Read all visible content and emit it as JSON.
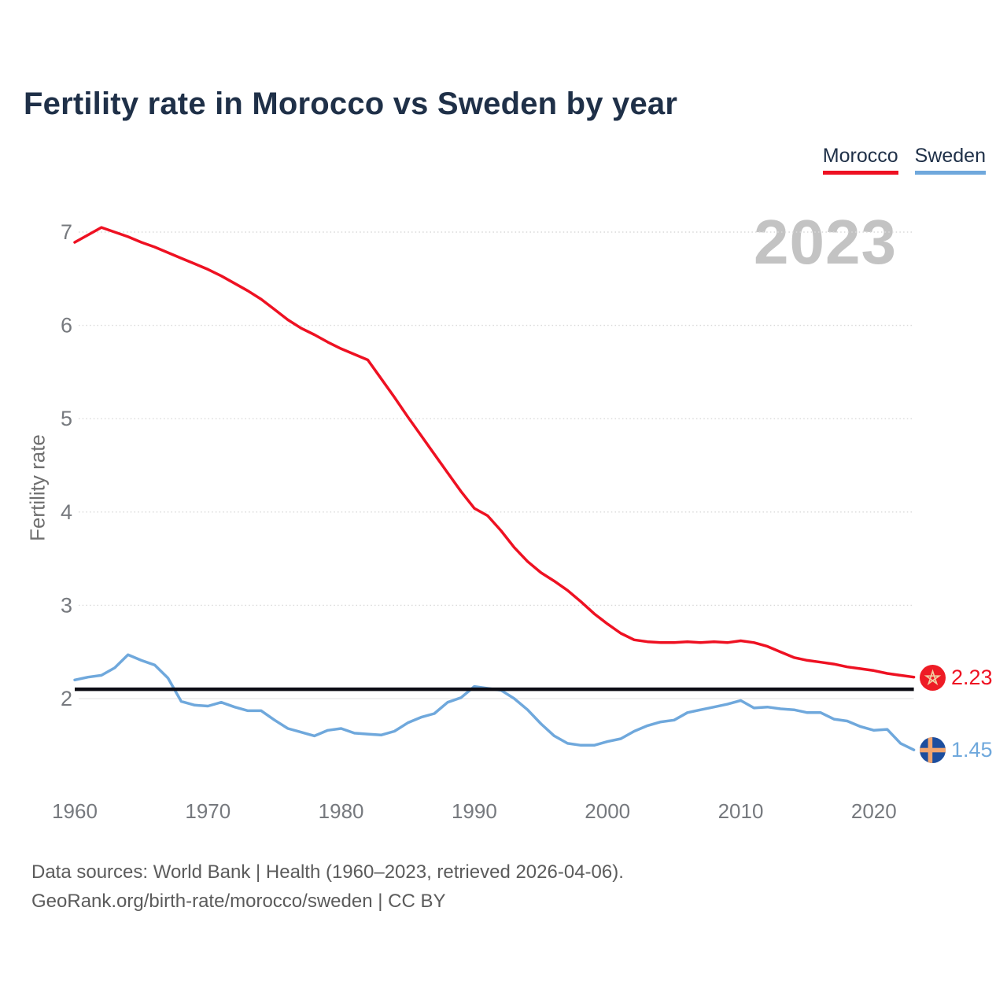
{
  "title": "Fertility rate in Morocco vs Sweden by year",
  "legend": {
    "items": [
      {
        "label": "Morocco",
        "color": "#ee1122"
      },
      {
        "label": "Sweden",
        "color": "#6fa8dc"
      }
    ]
  },
  "watermark": "2023",
  "y_axis": {
    "label": "Fertility rate"
  },
  "end_labels": {
    "morocco": {
      "value": "2.23",
      "flag": "morocco-flag",
      "color": "#ee1122"
    },
    "sweden": {
      "value": "1.45",
      "flag": "sweden-flag",
      "color": "#6fa8dc"
    }
  },
  "footer": {
    "line1": "Data sources: World Bank | Health (1960–2023, retrieved 2026-04-06).",
    "line2": "GeoRank.org/birth-rate/morocco/sweden | CC BY"
  },
  "chart_data": {
    "type": "line",
    "title": "Fertility rate in Morocco vs Sweden by year",
    "xlabel": "",
    "ylabel": "Fertility rate",
    "x_range": [
      1960,
      2023
    ],
    "ylim": [
      1.2,
      7.3
    ],
    "y_ticks": [
      2,
      3,
      4,
      5,
      6,
      7
    ],
    "x_ticks": [
      1960,
      1970,
      1980,
      1990,
      2000,
      2010,
      2020
    ],
    "grid": "horizontal-dotted",
    "legend_position": "top-right",
    "reference_line": 2.1,
    "x": [
      1960,
      1961,
      1962,
      1963,
      1964,
      1965,
      1966,
      1967,
      1968,
      1969,
      1970,
      1971,
      1972,
      1973,
      1974,
      1975,
      1976,
      1977,
      1978,
      1979,
      1980,
      1981,
      1982,
      1983,
      1984,
      1985,
      1986,
      1987,
      1988,
      1989,
      1990,
      1991,
      1992,
      1993,
      1994,
      1995,
      1996,
      1997,
      1998,
      1999,
      2000,
      2001,
      2002,
      2003,
      2004,
      2005,
      2006,
      2007,
      2008,
      2009,
      2010,
      2011,
      2012,
      2013,
      2014,
      2015,
      2016,
      2017,
      2018,
      2019,
      2020,
      2021,
      2022,
      2023
    ],
    "series": [
      {
        "name": "Morocco",
        "color": "#ee1122",
        "end_value": 2.23,
        "values": [
          6.89,
          6.97,
          7.05,
          7.0,
          6.95,
          6.89,
          6.84,
          6.78,
          6.72,
          6.66,
          6.6,
          6.53,
          6.45,
          6.37,
          6.28,
          6.17,
          6.06,
          5.97,
          5.9,
          5.82,
          5.75,
          5.69,
          5.63,
          5.43,
          5.23,
          5.02,
          4.82,
          4.62,
          4.42,
          4.22,
          4.04,
          3.96,
          3.8,
          3.62,
          3.47,
          3.35,
          3.26,
          3.16,
          3.04,
          2.91,
          2.8,
          2.7,
          2.63,
          2.61,
          2.6,
          2.6,
          2.61,
          2.6,
          2.61,
          2.6,
          2.62,
          2.6,
          2.56,
          2.5,
          2.44,
          2.41,
          2.39,
          2.37,
          2.34,
          2.32,
          2.3,
          2.27,
          2.25,
          2.23
        ]
      },
      {
        "name": "Sweden",
        "color": "#6fa8dc",
        "end_value": 1.45,
        "values": [
          2.2,
          2.23,
          2.25,
          2.33,
          2.47,
          2.41,
          2.36,
          2.22,
          1.97,
          1.93,
          1.92,
          1.96,
          1.91,
          1.87,
          1.87,
          1.77,
          1.68,
          1.64,
          1.6,
          1.66,
          1.68,
          1.63,
          1.62,
          1.61,
          1.65,
          1.74,
          1.8,
          1.84,
          1.96,
          2.01,
          2.13,
          2.11,
          2.09,
          2.0,
          1.88,
          1.73,
          1.6,
          1.52,
          1.5,
          1.5,
          1.54,
          1.57,
          1.65,
          1.71,
          1.75,
          1.77,
          1.85,
          1.88,
          1.91,
          1.94,
          1.98,
          1.9,
          1.91,
          1.89,
          1.88,
          1.85,
          1.85,
          1.78,
          1.76,
          1.7,
          1.66,
          1.67,
          1.52,
          1.45
        ]
      }
    ]
  }
}
